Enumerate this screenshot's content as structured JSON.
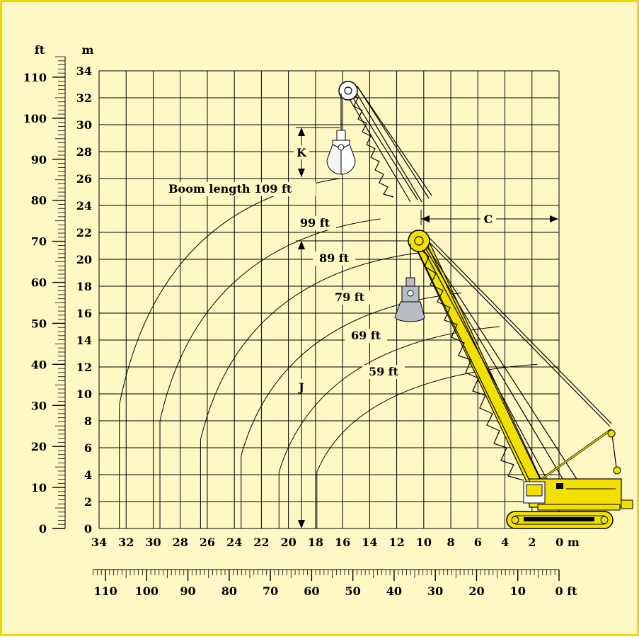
{
  "colors": {
    "background": "#fff8c4",
    "border": "#f2d600",
    "crane_yellow": "#f2e100",
    "bucket_grey": "#b8bcc4",
    "ink": "#000000"
  },
  "unit_labels": {
    "feet": "ft",
    "meters": "m"
  },
  "x_axis_m": {
    "ticks": [
      "34",
      "32",
      "30",
      "28",
      "26",
      "24",
      "22",
      "20",
      "18",
      "16",
      "14",
      "12",
      "10",
      "8",
      "6",
      "4",
      "2",
      "0 m"
    ]
  },
  "y_axis_m": {
    "ticks": [
      "0",
      "2",
      "4",
      "6",
      "8",
      "10",
      "12",
      "14",
      "16",
      "18",
      "20",
      "22",
      "24",
      "26",
      "28",
      "30",
      "32",
      "34"
    ]
  },
  "y_axis_ft": {
    "ticks": [
      "0",
      "10",
      "20",
      "30",
      "40",
      "50",
      "60",
      "70",
      "80",
      "90",
      "100",
      "110"
    ]
  },
  "x_axis_ft": {
    "ticks": [
      "110",
      "100",
      "90",
      "80",
      "70",
      "60",
      "50",
      "40",
      "30",
      "20",
      "10",
      "0 ft"
    ]
  },
  "boom_lengths": [
    {
      "label": "Boom length 109 ft",
      "radius_m": 32.5,
      "height_m": 26
    },
    {
      "label": "99 ft",
      "radius_m": 29.5,
      "height_m": 23
    },
    {
      "label": "89 ft",
      "radius_m": 26.5,
      "height_m": 20.5
    },
    {
      "label": "79 ft",
      "radius_m": 23.5,
      "height_m": 17.5
    },
    {
      "label": "69 ft",
      "radius_m": 20.7,
      "height_m": 15
    },
    {
      "label": "59 ft",
      "radius_m": 17.9,
      "height_m": 12.2
    }
  ],
  "dimensions": {
    "c": "C",
    "j": "J",
    "k": "K"
  }
}
